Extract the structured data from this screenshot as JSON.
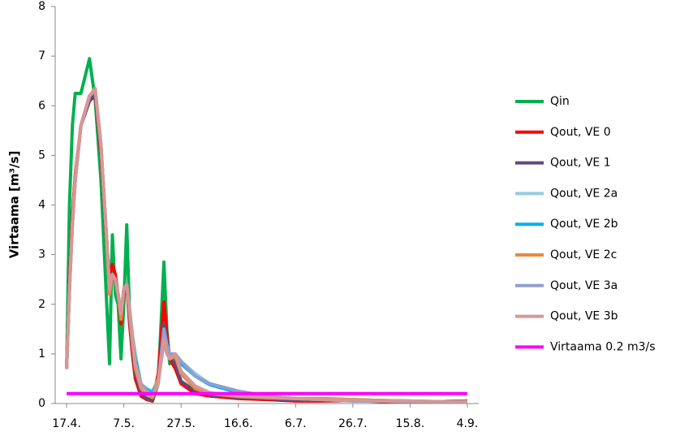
{
  "chart_data": {
    "type": "line",
    "y_label": "Virtaama [m³/s]",
    "x": [
      "17.4.",
      "18.4.",
      "19.4.",
      "20.4.",
      "22.4.",
      "25.4.",
      "27.4.",
      "29.4.",
      "1.5.",
      "2.5.",
      "3.5.",
      "4.5.",
      "5.5.",
      "6.5.",
      "7.5.",
      "8.5.",
      "9.5.",
      "10.5.",
      "11.5.",
      "13.5.",
      "15.5.",
      "17.5.",
      "19.5.",
      "21.5.",
      "22.5.",
      "23.5.",
      "25.5.",
      "27.5.",
      "1.6.",
      "6.6.",
      "16.6.",
      "26.6.",
      "6.7.",
      "16.7.",
      "26.7.",
      "5.8.",
      "15.8.",
      "25.8.",
      "4.9."
    ],
    "xlim": [
      "13.4.",
      "8.9."
    ],
    "xticks": [
      "17.4.",
      "7.5.",
      "27.5.",
      "16.6.",
      "6.7.",
      "26.7.",
      "15.8.",
      "4.9."
    ],
    "ylim": [
      0,
      8
    ],
    "yticks": [
      0,
      1,
      2,
      3,
      4,
      5,
      6,
      7,
      8
    ],
    "grid": false,
    "legend": "right",
    "series": [
      {
        "name": "Qin",
        "color": "#00b050",
        "values": [
          0.7,
          4,
          5.6,
          6.25,
          6.25,
          6.95,
          6.1,
          4.5,
          2.0,
          0.8,
          3.4,
          2.2,
          2.0,
          0.9,
          2.0,
          3.6,
          1.8,
          1.0,
          0.5,
          0.15,
          0.08,
          0.05,
          0.4,
          2.85,
          1.5,
          0.8,
          0.9,
          0.6,
          0.3,
          0.2,
          0.12,
          0.1,
          0.08,
          0.07,
          0.08,
          0.06,
          0.05,
          0.04,
          0.05
        ]
      },
      {
        "name": "Qout, VE 0",
        "color": "#ff0000",
        "values": [
          0.7,
          2.5,
          3.8,
          4.6,
          5.6,
          6.1,
          6.2,
          5.0,
          3.2,
          2.6,
          2.8,
          2.6,
          2.2,
          1.6,
          2.3,
          2.4,
          1.6,
          1.0,
          0.5,
          0.15,
          0.08,
          0.05,
          0.6,
          2.05,
          1.4,
          0.9,
          0.7,
          0.4,
          0.2,
          0.15,
          0.1,
          0.08,
          0.05,
          0.05,
          0.06,
          0.04,
          0.04,
          0.04,
          0.05
        ]
      },
      {
        "name": "Qout, VE 1",
        "color": "#604a7b",
        "values": [
          0.7,
          2.4,
          3.7,
          4.5,
          5.6,
          6.1,
          6.25,
          5.1,
          3.3,
          2.4,
          2.5,
          2.5,
          2.2,
          1.7,
          2.3,
          2.4,
          1.7,
          1.1,
          0.6,
          0.2,
          0.1,
          0.07,
          0.5,
          1.6,
          1.3,
          0.95,
          0.8,
          0.45,
          0.25,
          0.17,
          0.12,
          0.1,
          0.07,
          0.06,
          0.06,
          0.05,
          0.04,
          0.04,
          0.05
        ]
      },
      {
        "name": "Qout, VE 2a",
        "color": "#93cddd",
        "values": [
          0.7,
          2.3,
          3.6,
          4.5,
          5.6,
          6.2,
          6.3,
          5.2,
          3.3,
          2.3,
          2.6,
          2.5,
          2.2,
          1.8,
          2.3,
          2.4,
          1.9,
          1.4,
          1.0,
          0.4,
          0.3,
          0.25,
          0.5,
          1.2,
          1.1,
          1.0,
          1.0,
          0.85,
          0.6,
          0.4,
          0.25,
          0.15,
          0.1,
          0.08,
          0.05,
          0.05,
          0.04,
          0.03,
          0.04
        ]
      },
      {
        "name": "Qout, VE 2b",
        "color": "#00b0f0",
        "values": [
          0.7,
          2.3,
          3.6,
          4.5,
          5.6,
          6.2,
          6.3,
          5.2,
          3.3,
          2.3,
          2.6,
          2.5,
          2.2,
          1.8,
          2.3,
          2.4,
          1.9,
          1.3,
          0.9,
          0.38,
          0.28,
          0.22,
          0.45,
          1.25,
          1.1,
          1.0,
          0.95,
          0.8,
          0.55,
          0.38,
          0.22,
          0.14,
          0.1,
          0.08,
          0.06,
          0.05,
          0.04,
          0.03,
          0.04
        ]
      },
      {
        "name": "Qout, VE 2c",
        "color": "#e48a3c",
        "values": [
          0.7,
          2.3,
          3.6,
          4.5,
          5.6,
          6.2,
          6.3,
          5.2,
          3.3,
          2.2,
          2.6,
          2.5,
          2.2,
          1.7,
          2.3,
          2.4,
          1.8,
          1.2,
          0.7,
          0.3,
          0.18,
          0.12,
          0.5,
          1.4,
          1.1,
          0.9,
          0.95,
          0.6,
          0.3,
          0.2,
          0.14,
          0.12,
          0.1,
          0.1,
          0.08,
          0.06,
          0.05,
          0.04,
          0.04
        ]
      },
      {
        "name": "Qout, VE 3a",
        "color": "#8ea0d0",
        "values": [
          0.7,
          2.3,
          3.6,
          4.5,
          5.6,
          6.2,
          6.3,
          5.2,
          3.3,
          2.3,
          2.6,
          2.5,
          2.2,
          1.8,
          2.3,
          2.4,
          1.9,
          1.3,
          0.8,
          0.4,
          0.25,
          0.18,
          0.4,
          1.5,
          1.2,
          1.0,
          1.0,
          0.85,
          0.55,
          0.4,
          0.25,
          0.15,
          0.1,
          0.08,
          0.05,
          0.05,
          0.04,
          0.04,
          0.04
        ]
      },
      {
        "name": "Qout, VE 3b",
        "color": "#d99694",
        "values": [
          0.7,
          2.3,
          3.6,
          4.5,
          5.6,
          6.2,
          6.35,
          5.2,
          3.3,
          2.3,
          2.6,
          2.5,
          2.2,
          1.8,
          2.3,
          2.4,
          1.9,
          1.3,
          0.8,
          0.35,
          0.2,
          0.15,
          0.4,
          1.3,
          1.0,
          0.9,
          1.0,
          0.65,
          0.35,
          0.22,
          0.15,
          0.12,
          0.1,
          0.08,
          0.07,
          0.05,
          0.05,
          0.04,
          0.04
        ]
      },
      {
        "name": "Virtaama 0.2 m3/s",
        "color": "#ff00ff",
        "values": [
          0.2,
          0.2,
          0.2,
          0.2,
          0.2,
          0.2,
          0.2,
          0.2,
          0.2,
          0.2,
          0.2,
          0.2,
          0.2,
          0.2,
          0.2,
          0.2,
          0.2,
          0.2,
          0.2,
          0.2,
          0.2,
          0.2,
          0.2,
          0.2,
          0.2,
          0.2,
          0.2,
          0.2,
          0.2,
          0.2,
          0.2,
          0.2,
          0.2,
          0.2,
          0.2,
          0.2,
          0.2,
          0.2,
          0.2
        ]
      }
    ]
  }
}
